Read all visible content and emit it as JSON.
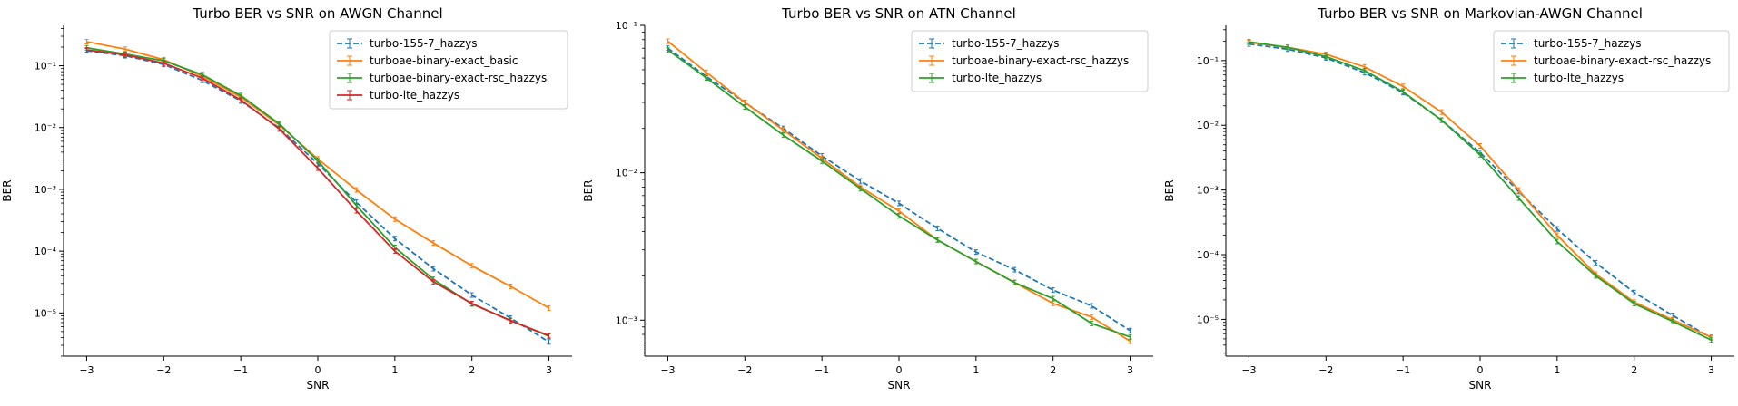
{
  "chart_data": [
    {
      "type": "line",
      "title": "Turbo BER vs SNR on AWGN Channel",
      "xlabel": "SNR",
      "ylabel": "BER",
      "yscale": "log",
      "xlim": [
        -3.3,
        3.3
      ],
      "ylim": [
        2e-06,
        0.45
      ],
      "xticks": [
        -3,
        -2,
        -1,
        0,
        1,
        2,
        3
      ],
      "xtick_labels": [
        "−3",
        "−2",
        "−1",
        "0",
        "1",
        "2",
        "3"
      ],
      "yticks": [
        1e-05,
        0.0001,
        0.001,
        0.01,
        0.1
      ],
      "ytick_labels": [
        "10⁻⁵",
        "10⁻⁴",
        "10⁻³",
        "10⁻²",
        "10⁻¹"
      ],
      "legend_position": "top-right",
      "x": [
        -3,
        -2.5,
        -2,
        -1.5,
        -1,
        -0.5,
        0,
        0.5,
        1,
        1.5,
        2,
        2.5,
        3
      ],
      "series": [
        {
          "name": "turbo-155-7_hazzys",
          "color": "#1f77b4",
          "dashed": true,
          "values": [
            0.175,
            0.145,
            0.105,
            0.058,
            0.027,
            0.0098,
            0.0026,
            0.00062,
            0.00016,
            5.2e-05,
            1.95e-05,
            8.3e-06,
            3.4e-06
          ]
        },
        {
          "name": "turboae-binary-exact_basic",
          "color": "#ff7f0e",
          "dashed": false,
          "values": [
            0.245,
            0.185,
            0.125,
            0.068,
            0.031,
            0.011,
            0.0031,
            0.00098,
            0.00033,
            0.000135,
            5.8e-05,
            2.7e-05,
            1.2e-05
          ]
        },
        {
          "name": "turboae-binary-exact-rsc_hazzys",
          "color": "#2ca02c",
          "dashed": false,
          "values": [
            0.195,
            0.155,
            0.12,
            0.072,
            0.033,
            0.0115,
            0.0029,
            0.00055,
            0.000115,
            3.5e-05,
            1.4e-05,
            7.6e-06,
            4.2e-06
          ]
        },
        {
          "name": "turbo-lte_hazzys",
          "color": "#d62728",
          "dashed": false,
          "values": [
            0.18,
            0.15,
            0.11,
            0.063,
            0.028,
            0.0095,
            0.0022,
            0.00045,
            0.0001,
            3.2e-05,
            1.42e-05,
            7.5e-06,
            4.3e-06
          ]
        }
      ]
    },
    {
      "type": "line",
      "title": "Turbo BER vs SNR on ATN Channel",
      "xlabel": "SNR",
      "ylabel": "BER",
      "yscale": "log",
      "xlim": [
        -3.3,
        3.3
      ],
      "ylim": [
        0.00057,
        0.1
      ],
      "xticks": [
        -3,
        -2,
        -1,
        0,
        1,
        2,
        3
      ],
      "xtick_labels": [
        "−3",
        "−2",
        "−1",
        "0",
        "1",
        "2",
        "3"
      ],
      "yticks": [
        0.001,
        0.01,
        0.1
      ],
      "ytick_labels": [
        "10⁻³",
        "10⁻²",
        "10⁻¹"
      ],
      "legend_position": "top-right",
      "x": [
        -3,
        -2.5,
        -2,
        -1.5,
        -1,
        -0.5,
        0,
        0.5,
        1,
        1.5,
        2,
        2.5,
        3
      ],
      "series": [
        {
          "name": "turbo-155-7_hazzys",
          "color": "#1f77b4",
          "dashed": true,
          "values": [
            0.07,
            0.045,
            0.03,
            0.02,
            0.013,
            0.0088,
            0.0062,
            0.0042,
            0.0029,
            0.0022,
            0.0016,
            0.00125,
            0.00085
          ]
        },
        {
          "name": "turboae-binary-exact-rsc_hazzys",
          "color": "#ff7f0e",
          "dashed": false,
          "values": [
            0.078,
            0.048,
            0.03,
            0.0195,
            0.0125,
            0.008,
            0.0055,
            0.0035,
            0.0025,
            0.0018,
            0.0013,
            0.00105,
            0.00072
          ]
        },
        {
          "name": "turbo-lte_hazzys",
          "color": "#2ca02c",
          "dashed": false,
          "values": [
            0.068,
            0.044,
            0.028,
            0.018,
            0.012,
            0.0078,
            0.0051,
            0.0035,
            0.0025,
            0.0018,
            0.0014,
            0.00095,
            0.00077
          ]
        }
      ]
    },
    {
      "type": "line",
      "title": "Turbo BER vs SNR on Markovian-AWGN Channel",
      "xlabel": "SNR",
      "ylabel": "BER",
      "yscale": "log",
      "xlim": [
        -3.3,
        3.3
      ],
      "ylim": [
        2.7e-06,
        0.35
      ],
      "xticks": [
        -3,
        -2,
        -1,
        0,
        1,
        2,
        3
      ],
      "xtick_labels": [
        "−3",
        "−2",
        "−1",
        "0",
        "1",
        "2",
        "3"
      ],
      "yticks": [
        1e-05,
        0.0001,
        0.001,
        0.01,
        0.1
      ],
      "ytick_labels": [
        "10⁻⁵",
        "10⁻⁴",
        "10⁻³",
        "10⁻²",
        "10⁻¹"
      ],
      "legend_position": "top-right",
      "x": [
        -3,
        -2.5,
        -2,
        -1.5,
        -1,
        -0.5,
        0,
        0.5,
        1,
        1.5,
        2,
        2.5,
        3
      ],
      "series": [
        {
          "name": "turbo-155-7_hazzys",
          "color": "#1f77b4",
          "dashed": true,
          "values": [
            0.18,
            0.15,
            0.11,
            0.065,
            0.032,
            0.012,
            0.0038,
            0.00095,
            0.00025,
            7.5e-05,
            2.6e-05,
            1.15e-05,
            5.2e-06
          ]
        },
        {
          "name": "turboae-binary-exact-rsc_hazzys",
          "color": "#ff7f0e",
          "dashed": false,
          "values": [
            0.19,
            0.16,
            0.125,
            0.08,
            0.04,
            0.016,
            0.0048,
            0.001,
            0.0002,
            5e-05,
            1.85e-05,
            9.8e-06,
            5.3e-06
          ]
        },
        {
          "name": "turbo-lte_hazzys",
          "color": "#2ca02c",
          "dashed": false,
          "values": [
            0.195,
            0.16,
            0.115,
            0.07,
            0.033,
            0.012,
            0.0035,
            0.00075,
            0.00016,
            4.7e-05,
            1.75e-05,
            9.3e-06,
            4.8e-06
          ]
        }
      ]
    }
  ]
}
